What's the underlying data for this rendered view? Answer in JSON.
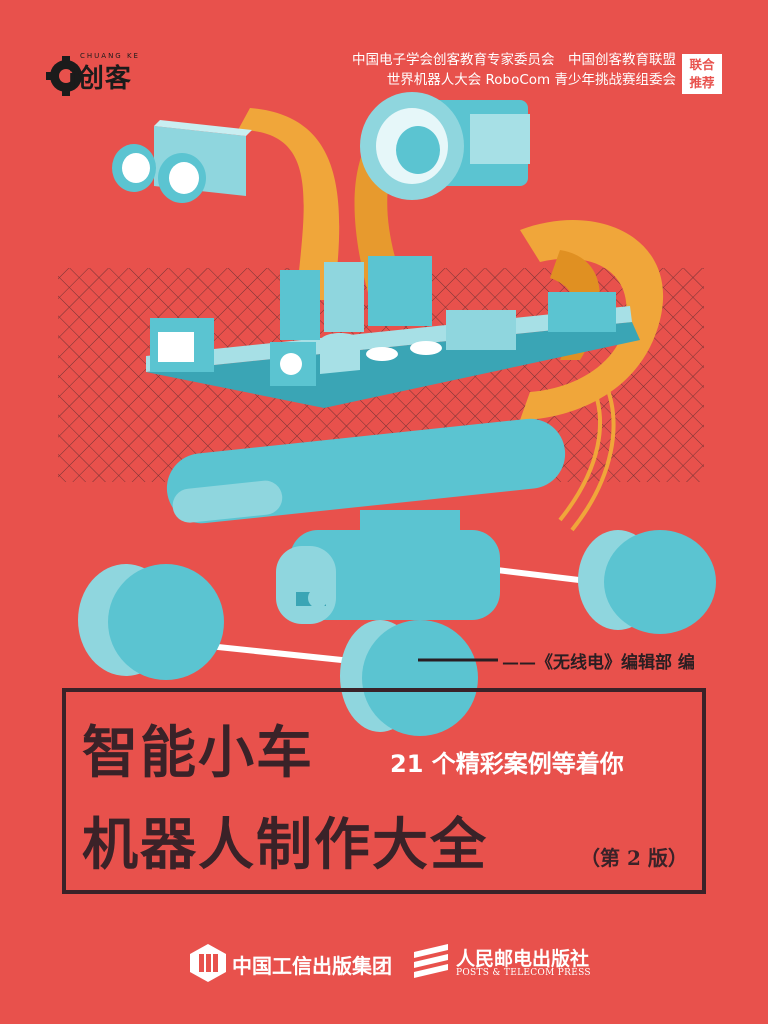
{
  "logo": {
    "small_text": "CHUANG KE",
    "text": "i创客"
  },
  "endorsers": {
    "line1": "中国电子学会创客教育专家委员会　中国创客教育联盟",
    "line2": "世界机器人大会 RoboCom 青少年挑战赛组委会",
    "badge_line1": "联合",
    "badge_line2": "推荐"
  },
  "editor": "——《无线电》编辑部 编",
  "title": {
    "line1": "智能小车",
    "subtitle": "21 个精彩案例等着你",
    "line2": "机器人制作大全",
    "edition": "（第 2 版）"
  },
  "publishers": {
    "pub1": "中国工信出版集团",
    "pub2": "人民邮电出版社",
    "pub2_en": "POSTS & TELECOM PRESS"
  },
  "colors": {
    "background": "#e8514c",
    "cyan": "#5bc4d1",
    "cyan_light": "#a7e0e6",
    "orange": "#f0a63a",
    "dark": "#3a2228"
  },
  "icons": {
    "logo": "gear-logo-icon",
    "pub1": "miit-logo-icon",
    "pub2": "ptpress-logo-icon"
  }
}
